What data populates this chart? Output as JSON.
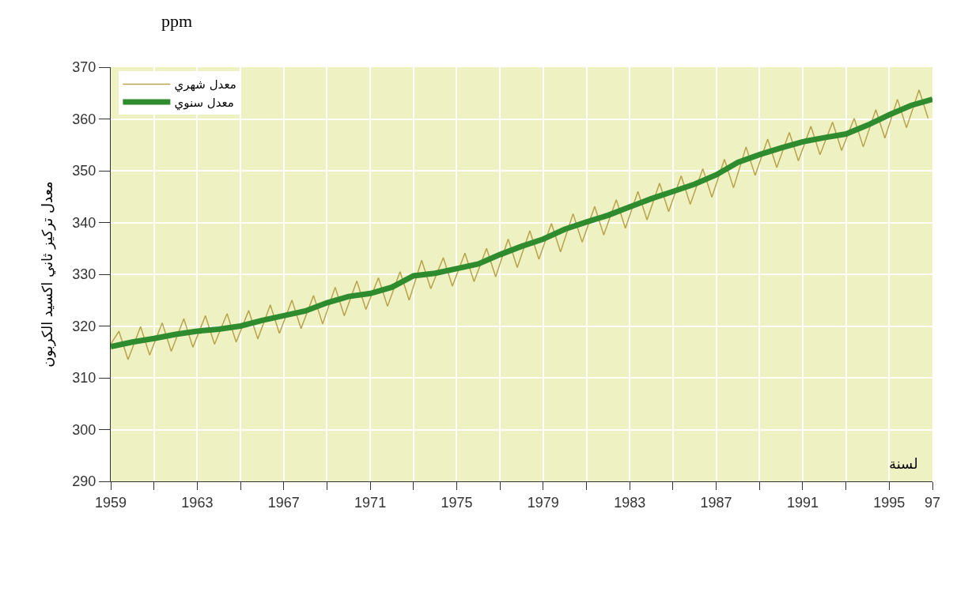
{
  "chart_data": {
    "type": "line",
    "ylabel": "معدل تركيز ثاني اكسيد الكربون",
    "xlabel": "لسنة",
    "annotations": [
      "ppm"
    ],
    "xlim": [
      1959,
      1997
    ],
    "xticks": [
      1959,
      {
        "value": 1961,
        "label": null
      },
      1963,
      {
        "value": 1965,
        "label": null
      },
      1967,
      {
        "value": 1969,
        "label": null
      },
      1971,
      {
        "value": 1973,
        "label": null
      },
      1975,
      {
        "value": 1977,
        "label": null
      },
      1979,
      {
        "value": 1981,
        "label": null
      },
      1983,
      {
        "value": 1985,
        "label": null
      },
      1987,
      {
        "value": 1989,
        "label": null
      },
      1991,
      {
        "value": 1993,
        "label": null
      },
      1995,
      {
        "value": 1997,
        "label": "97"
      }
    ],
    "ylim": [
      290,
      370
    ],
    "yticks": [
      290,
      300,
      310,
      320,
      330,
      340,
      350,
      360,
      370
    ],
    "grid": true,
    "legend": "top left",
    "series": [
      {
        "name": "معدل شهري",
        "color": "#b8a24a",
        "x": [
          1959.0,
          1959.38,
          1959.8,
          1960.38,
          1960.8,
          1961.38,
          1961.8,
          1962.38,
          1962.8,
          1963.38,
          1963.8,
          1964.38,
          1964.8,
          1965.38,
          1965.8,
          1966.38,
          1966.8,
          1967.38,
          1967.8,
          1968.38,
          1968.8,
          1969.38,
          1969.8,
          1970.38,
          1970.8,
          1971.38,
          1971.8,
          1972.38,
          1972.8,
          1973.38,
          1973.8,
          1974.38,
          1974.8,
          1975.38,
          1975.8,
          1976.38,
          1976.8,
          1977.38,
          1977.8,
          1978.38,
          1978.8,
          1979.38,
          1979.8,
          1980.38,
          1980.8,
          1981.38,
          1981.8,
          1982.38,
          1982.8,
          1983.38,
          1983.8,
          1984.38,
          1984.8,
          1985.38,
          1985.8,
          1986.38,
          1986.8,
          1987.38,
          1987.8,
          1988.38,
          1988.8,
          1989.38,
          1989.8,
          1990.38,
          1990.8,
          1991.38,
          1991.8,
          1992.38,
          1992.8,
          1993.38,
          1993.8,
          1994.38,
          1994.8,
          1995.38,
          1995.8,
          1996.38,
          1996.8
        ],
        "values": [
          316.5,
          319.0,
          313.5,
          319.9,
          314.4,
          320.6,
          315.1,
          321.4,
          315.9,
          322.0,
          316.5,
          322.4,
          316.9,
          323.0,
          317.5,
          324.1,
          318.6,
          325.0,
          319.5,
          325.9,
          320.4,
          327.5,
          322.0,
          328.7,
          323.2,
          329.3,
          323.8,
          330.5,
          325.0,
          332.7,
          327.2,
          333.2,
          327.7,
          334.1,
          328.6,
          335.0,
          329.5,
          336.8,
          331.3,
          338.4,
          332.9,
          339.8,
          334.3,
          341.7,
          336.2,
          343.1,
          337.6,
          344.4,
          338.9,
          346.0,
          340.5,
          347.6,
          342.1,
          349.0,
          343.5,
          350.4,
          344.9,
          352.2,
          346.7,
          354.6,
          349.1,
          356.1,
          350.6,
          357.4,
          351.9,
          358.6,
          353.1,
          359.4,
          353.9,
          360.1,
          354.6,
          361.8,
          356.3,
          363.8,
          358.3,
          365.6,
          360.1
        ]
      },
      {
        "name": "معدل سنوي",
        "color": "#2e8b2e",
        "x": [
          1959,
          1960,
          1961,
          1962,
          1963,
          1964,
          1965,
          1966,
          1967,
          1968,
          1969,
          1970,
          1971,
          1972,
          1973,
          1974,
          1975,
          1976,
          1977,
          1978,
          1979,
          1980,
          1981,
          1982,
          1983,
          1984,
          1985,
          1986,
          1987,
          1988,
          1989,
          1990,
          1991,
          1992,
          1993,
          1994,
          1995,
          1996,
          1997
        ],
        "values": [
          316.0,
          316.9,
          317.6,
          318.4,
          319.0,
          319.4,
          320.0,
          321.1,
          322.0,
          322.9,
          324.5,
          325.7,
          326.3,
          327.5,
          329.7,
          330.2,
          331.1,
          332.0,
          333.8,
          335.4,
          336.8,
          338.7,
          340.1,
          341.4,
          343.0,
          344.6,
          346.0,
          347.4,
          349.2,
          351.6,
          353.1,
          354.4,
          355.6,
          356.4,
          357.1,
          358.8,
          360.8,
          362.6,
          363.8
        ]
      }
    ]
  }
}
